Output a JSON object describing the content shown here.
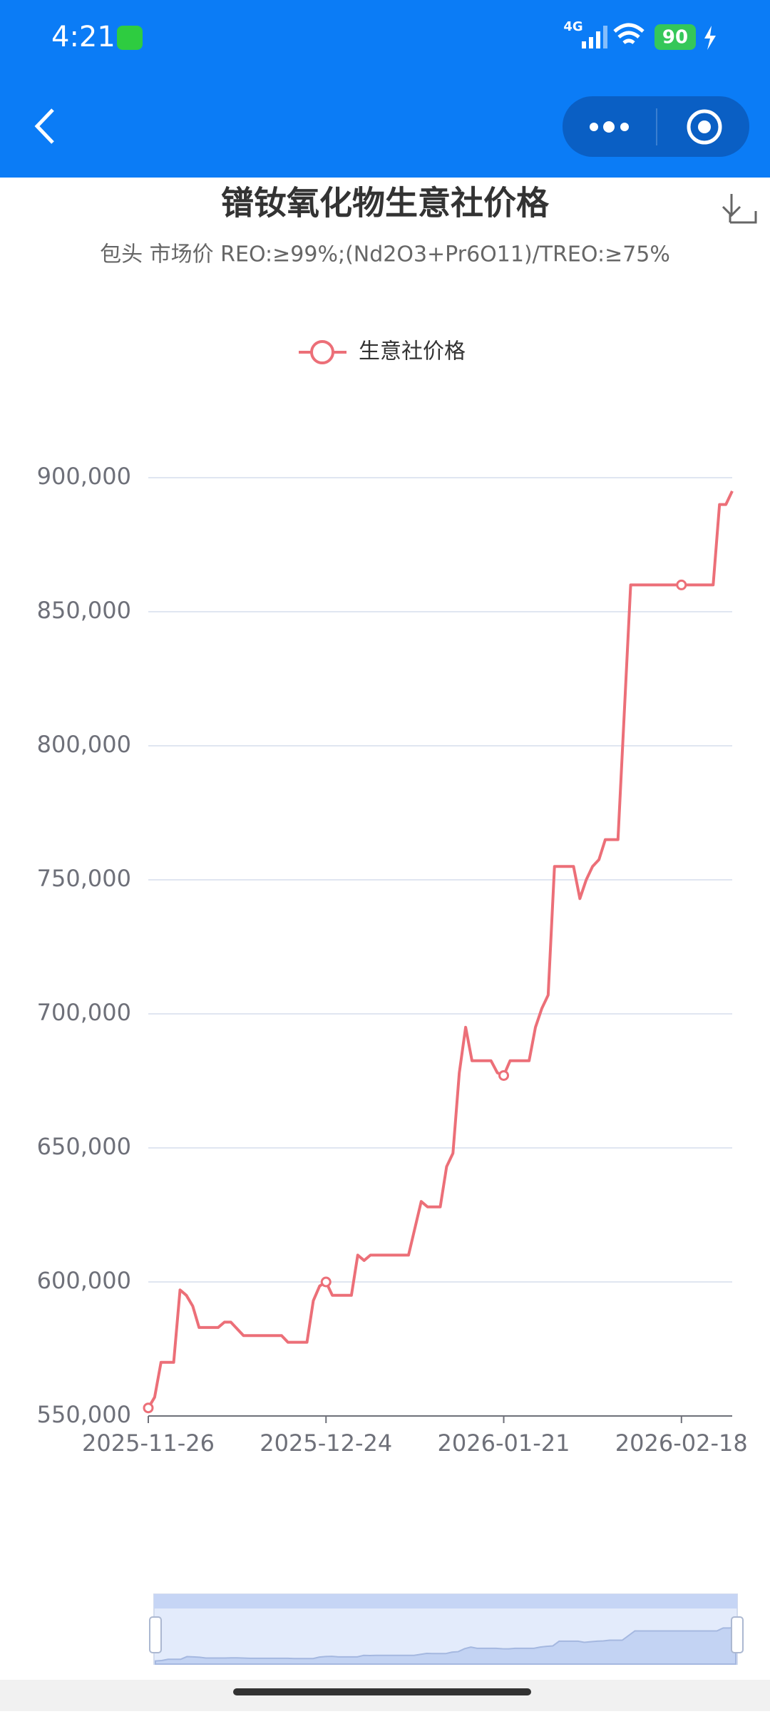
{
  "status_bar": {
    "time": "4:21",
    "network": "4G",
    "battery": "90"
  },
  "chart_data": {
    "type": "line",
    "title": "镨钕氧化物生意社价格",
    "subtitle": "包头 市场价 REO:≥99%;(Nd2O3+Pr6O11)/TREO:≥75%",
    "x": [
      "2025-11-26",
      "2025-11-27",
      "2025-11-28",
      "2025-11-30",
      "2025-12-01",
      "2025-12-02",
      "2025-12-03",
      "2025-12-04",
      "2025-12-07",
      "2025-12-08",
      "2025-12-09",
      "2025-12-11",
      "2025-12-17",
      "2025-12-18",
      "2025-12-21",
      "2025-12-22",
      "2025-12-23",
      "2025-12-24",
      "2025-12-25",
      "2025-12-28",
      "2025-12-29",
      "2025-12-30",
      "2025-12-31",
      "2026-01-06",
      "2026-01-08",
      "2026-01-09",
      "2026-01-11",
      "2026-01-12",
      "2026-01-13",
      "2026-01-14",
      "2026-01-15",
      "2026-01-16",
      "2026-01-19",
      "2026-01-20",
      "2026-01-21",
      "2026-01-22",
      "2026-01-25",
      "2026-01-26",
      "2026-01-27",
      "2026-01-28",
      "2026-01-29",
      "2026-02-01",
      "2026-02-02",
      "2026-02-03",
      "2026-02-04",
      "2026-02-05",
      "2026-02-06",
      "2026-02-08",
      "2026-02-10",
      "2026-02-18",
      "2026-02-23",
      "2026-02-24",
      "2026-02-25",
      "2026-02-26"
    ],
    "series": [
      {
        "name": "生意社价格",
        "color": "#ec6f78",
        "values": [
          553000,
          557000,
          570000,
          570000,
          597000,
          595000,
          591000,
          583000,
          583000,
          585000,
          585000,
          580000,
          580000,
          577500,
          577500,
          593000,
          598500,
          600000,
          595000,
          595000,
          610000,
          608000,
          610000,
          610000,
          630000,
          628000,
          628000,
          643000,
          648000,
          678000,
          695000,
          682500,
          682500,
          678000,
          677000,
          682500,
          682500,
          695000,
          702000,
          707000,
          755000,
          755000,
          743000,
          750000,
          755000,
          757500,
          765000,
          765000,
          860000,
          860000,
          860000,
          890000,
          890000,
          895000
        ]
      }
    ],
    "xlim": [
      "2025-11-26",
      "2026-02-26"
    ],
    "xticks": [
      "2025-11-26",
      "2025-12-24",
      "2026-01-21",
      "2026-02-18"
    ],
    "ylim": [
      550000,
      900000
    ],
    "yticks": [
      {
        "value": 550000,
        "label": "550,000"
      },
      {
        "value": 600000,
        "label": "600,000"
      },
      {
        "value": 650000,
        "label": "650,000"
      },
      {
        "value": 700000,
        "label": "700,000"
      },
      {
        "value": 750000,
        "label": "750,000"
      },
      {
        "value": 800000,
        "label": "800,000"
      },
      {
        "value": 850000,
        "label": "850,000"
      },
      {
        "value": 900000,
        "label": "900,000"
      }
    ],
    "grid": true
  }
}
